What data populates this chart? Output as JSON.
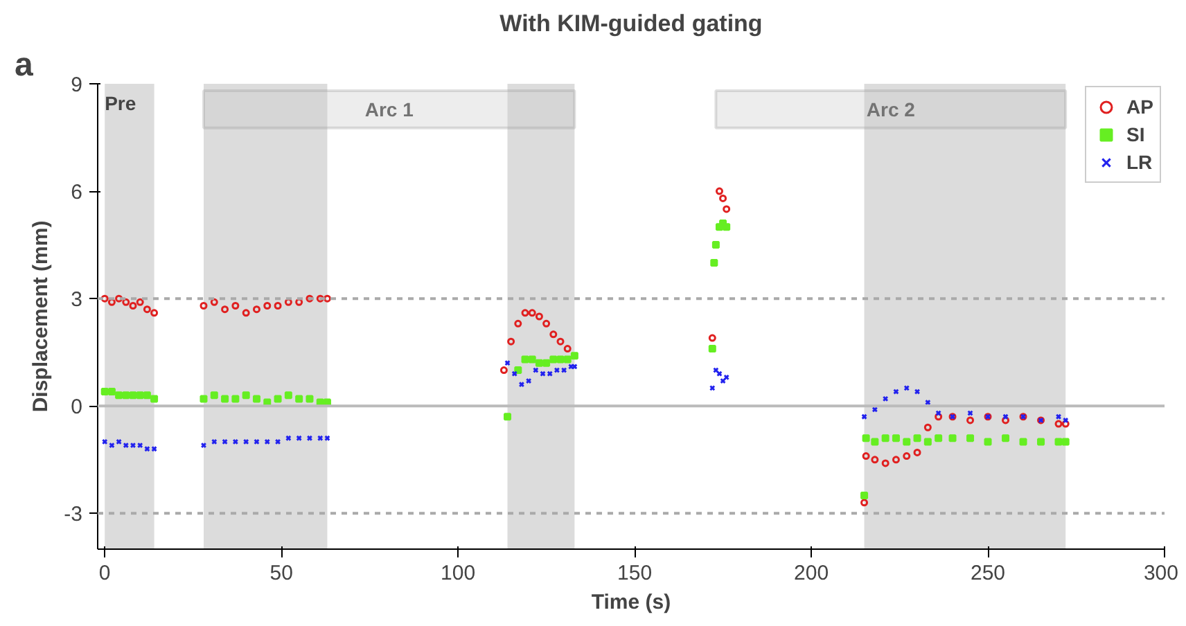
{
  "chart_data": {
    "type": "scatter",
    "title": "With KIM-guided gating",
    "xlabel": "Time (s)",
    "ylabel": "Displacement (mm)",
    "annotations": [
      "a"
    ],
    "xlim": [
      -2,
      300
    ],
    "ylim": [
      -4,
      9
    ],
    "xticks": [
      0,
      50,
      100,
      150,
      200,
      250,
      300
    ],
    "yticks": [
      -3,
      0,
      3,
      6,
      9
    ],
    "grid": false,
    "legend": "top right",
    "ref_lines": [
      {
        "axis": "y",
        "value": 3,
        "line_style": "dashed",
        "color": "#aaaaaa"
      },
      {
        "axis": "y",
        "value": -3,
        "line_style": "dashed",
        "color": "#aaaaaa"
      },
      {
        "axis": "y",
        "value": 0,
        "line_style": "solid",
        "color": "#bbbbbb"
      }
    ],
    "bands": [
      {
        "axis": "x",
        "from": 0,
        "to": 14,
        "label": "Pre",
        "color": "#dcdcdc"
      },
      {
        "axis": "x",
        "from": 28,
        "to": 63,
        "color": "#dcdcdc"
      },
      {
        "axis": "x",
        "from": 114,
        "to": 133,
        "color": "#dcdcdc"
      },
      {
        "axis": "x",
        "from": 215,
        "to": 272,
        "color": "#dcdcdc"
      },
      {
        "axis": "x",
        "from": 28,
        "to": 133,
        "label": "Arc 1"
      },
      {
        "axis": "x",
        "from": 173,
        "to": 272,
        "label": "Arc 2"
      }
    ],
    "series": [
      {
        "name": "AP",
        "color": "#e02020",
        "marker": "circle",
        "x": [
          0,
          2,
          4,
          6,
          8,
          10,
          12,
          14,
          28,
          31,
          34,
          37,
          40,
          43,
          46,
          49,
          52,
          55,
          58,
          61,
          63,
          113,
          115,
          117,
          119,
          121,
          123,
          125,
          127,
          129,
          131,
          133,
          172,
          173,
          174,
          175,
          176,
          177,
          215,
          215.5,
          218,
          221,
          224,
          227,
          230,
          233,
          236,
          240,
          245,
          250,
          255,
          260,
          265,
          270,
          272
        ],
        "values": [
          3.0,
          2.9,
          3.0,
          2.9,
          2.8,
          2.9,
          2.7,
          2.6,
          2.8,
          2.9,
          2.7,
          2.8,
          2.6,
          2.7,
          2.8,
          2.8,
          2.9,
          2.9,
          3.0,
          3.0,
          3.0,
          1.0,
          1.8,
          2.3,
          2.6,
          2.6,
          2.5,
          2.3,
          2.0,
          1.8,
          1.6,
          null,
          1.9,
          null,
          6.0,
          5.8,
          5.5,
          null,
          -2.7,
          -1.4,
          -1.5,
          -1.6,
          -1.5,
          -1.4,
          -1.3,
          -0.6,
          -0.3,
          -0.3,
          -0.4,
          -0.3,
          -0.4,
          -0.3,
          -0.4,
          -0.5,
          -0.5
        ]
      },
      {
        "name": "SI",
        "color": "#66ee22",
        "marker": "square",
        "x": [
          0,
          2,
          4,
          6,
          8,
          10,
          12,
          14,
          28,
          31,
          34,
          37,
          40,
          43,
          46,
          49,
          52,
          55,
          58,
          61,
          63,
          114,
          117,
          119,
          121,
          123,
          125,
          127,
          129,
          131,
          133,
          172,
          172.5,
          173,
          174,
          175,
          176,
          215,
          215.5,
          218,
          221,
          224,
          227,
          230,
          233,
          236,
          240,
          245,
          250,
          255,
          260,
          265,
          270,
          272
        ],
        "values": [
          0.4,
          0.4,
          0.3,
          0.3,
          0.3,
          0.3,
          0.3,
          0.2,
          0.2,
          0.3,
          0.2,
          0.2,
          0.3,
          0.2,
          0.1,
          0.2,
          0.3,
          0.2,
          0.2,
          0.1,
          0.1,
          -0.3,
          1.0,
          1.3,
          1.3,
          1.2,
          1.2,
          1.3,
          1.3,
          1.3,
          1.4,
          1.6,
          4.0,
          4.5,
          5.0,
          5.1,
          5.0,
          -2.5,
          -0.9,
          -1.0,
          -0.9,
          -0.9,
          -1.0,
          -0.9,
          -1.0,
          -0.9,
          -0.9,
          -0.9,
          -1.0,
          -0.9,
          -1.0,
          -1.0,
          -1.0,
          -1.0
        ]
      },
      {
        "name": "LR",
        "color": "#2222ee",
        "marker": "cross",
        "x": [
          0,
          2,
          4,
          6,
          8,
          10,
          12,
          14,
          28,
          31,
          34,
          37,
          40,
          43,
          46,
          49,
          52,
          55,
          58,
          61,
          63,
          114,
          116,
          118,
          120,
          122,
          124,
          126,
          128,
          130,
          132,
          133,
          172,
          173,
          174,
          175,
          176,
          215,
          218,
          221,
          224,
          227,
          230,
          233,
          236,
          240,
          245,
          250,
          255,
          260,
          265,
          270,
          272
        ],
        "values": [
          -1.0,
          -1.1,
          -1.0,
          -1.1,
          -1.1,
          -1.1,
          -1.2,
          -1.2,
          -1.1,
          -1.0,
          -1.0,
          -1.0,
          -1.0,
          -1.0,
          -1.0,
          -1.0,
          -0.9,
          -0.9,
          -0.9,
          -0.9,
          -0.9,
          1.2,
          0.9,
          0.6,
          0.7,
          1.0,
          0.9,
          0.9,
          1.0,
          1.0,
          1.1,
          1.1,
          0.5,
          1.0,
          0.9,
          0.7,
          0.8,
          -0.3,
          -0.1,
          0.2,
          0.4,
          0.5,
          0.4,
          0.1,
          -0.2,
          -0.3,
          -0.2,
          -0.3,
          -0.3,
          -0.3,
          -0.4,
          -0.3,
          -0.4
        ]
      }
    ]
  }
}
